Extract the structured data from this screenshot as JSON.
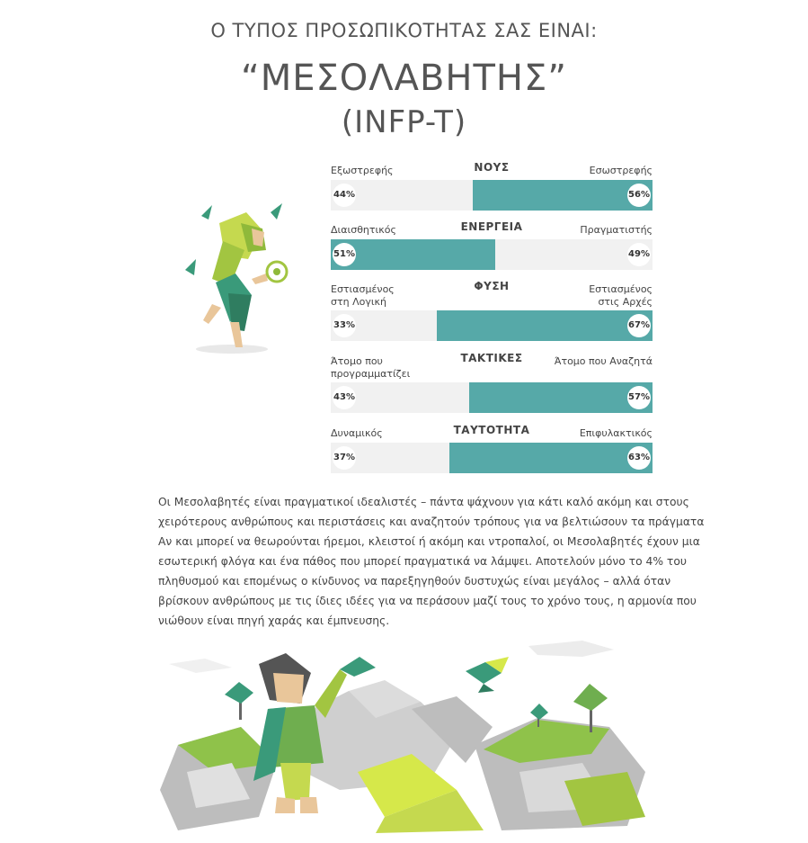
{
  "header": {
    "subtitle": "Ο ΤΥΠΟΣ ΠΡΟΣΩΠΙΚΟΤΗΤΑΣ ΣΑΣ ΕΙΝΑΙ:",
    "type_name": "“ΜΕΣΟΛΑΒΗΤΗΣ”",
    "type_code": "(INFP-T)"
  },
  "colors": {
    "accent": "#56a9a8",
    "track": "#f1f1f1"
  },
  "traits": [
    {
      "category": "ΝΟΥΣ",
      "left_label": "Εξωστρεφής",
      "right_label": "Εσωστρεφής",
      "left_pct": 44,
      "right_pct": 56,
      "dominant": "right",
      "left_display": "44%",
      "right_display": "56%"
    },
    {
      "category": "ΕΝΕΡΓΕΙΑ",
      "left_label": "Διαισθητικός",
      "right_label": "Πραγματιστής",
      "left_pct": 51,
      "right_pct": 49,
      "dominant": "left",
      "left_display": "51%",
      "right_display": "49%"
    },
    {
      "category": "ΦΥΣΗ",
      "left_label": "Εστιασμένος στη Λογική",
      "right_label": "Εστιασμένος στις Αρχές",
      "left_pct": 33,
      "right_pct": 67,
      "dominant": "right",
      "left_display": "33%",
      "right_display": "67%"
    },
    {
      "category": "ΤΑΚΤΙΚΕΣ",
      "left_label": "Άτομο που προγραμματίζει",
      "right_label": "Άτομο που Αναζητά",
      "left_pct": 43,
      "right_pct": 57,
      "dominant": "right",
      "left_display": "43%",
      "right_display": "57%"
    },
    {
      "category": "ΤΑΥΤΟΤΗΤΑ",
      "left_label": "Δυναμικός",
      "right_label": "Επιφυλακτικός",
      "left_pct": 37,
      "right_pct": 63,
      "dominant": "right",
      "left_display": "37%",
      "right_display": "63%"
    }
  ],
  "description_lines": [
    "Οι Μεσολαβητές είναι πραγματικοί ιδεαλιστές – πάντα ψάχνουν για κάτι καλό ακόμη και στους",
    "χειρότερους ανθρώπους και περιστάσεις και αναζητούν τρόπους για να βελτιώσουν τα πράγματα",
    "Αν και μπορεί να θεωρούνται ήρεμοι, κλειστοί ή ακόμη και ντροπαλοί, οι Μεσολαβητές έχουν μια",
    "εσωτερική φλόγα και ένα πάθος που μπορεί πραγματικά να λάμψει. Αποτελούν μόνο το 4% του",
    "πληθυσμού και επομένως ο κίνδυνος να παρεξηγηθούν δυστυχώς είναι μεγάλος – αλλά όταν",
    "βρίσκουν ανθρώπους με τις ίδιες ιδέες για να περάσουν μαζί τους το χρόνο τους, η αρμονία που",
    "νιώθουν είναι πηγή χαράς και έμπνευσης."
  ],
  "illustrations": {
    "character_icon": "mediator-character-icon",
    "landscape_icon": "mediator-landscape-icon"
  }
}
